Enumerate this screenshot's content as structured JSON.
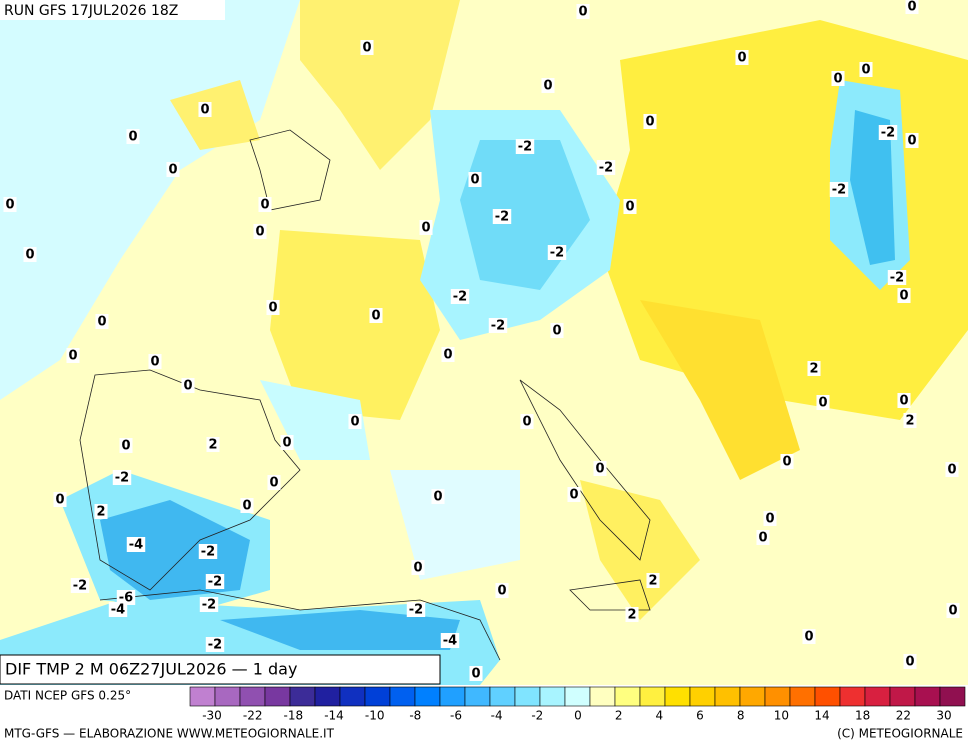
{
  "header": {
    "run": "RUN GFS 17JUL2026 18Z"
  },
  "map": {
    "title": "DIF TMP 2 M 06Z27JUL2026 — 1 day",
    "contour_labels": [
      0,
      0,
      0,
      0,
      0,
      0,
      0,
      0,
      0,
      0,
      0,
      0,
      0,
      0,
      0,
      -2,
      -2,
      0,
      -2,
      0,
      0,
      -2,
      -2,
      0,
      -2,
      -2,
      0,
      -2,
      0,
      0,
      0,
      -2,
      0,
      0,
      0,
      0,
      0,
      2,
      0,
      0,
      2,
      0,
      0,
      0,
      0,
      2,
      -2,
      0,
      0,
      0,
      0,
      0,
      0,
      0,
      2,
      0,
      0,
      0,
      -4,
      -2,
      -2,
      0,
      -2,
      -6,
      -4,
      -2,
      2,
      0,
      -2,
      2,
      0,
      0,
      -2,
      -4,
      0,
      0
    ]
  },
  "legend": {
    "source": "DATI NCEP GFS 0.25°",
    "colors": [
      "#c080d0",
      "#a868c0",
      "#9050b0",
      "#7838a0",
      "#3c2c98",
      "#2020a0",
      "#1030c0",
      "#0040d8",
      "#0060f0",
      "#0080ff",
      "#20a0ff",
      "#40b8ff",
      "#60d0ff",
      "#80e4ff",
      "#a8f4ff",
      "#d0ffff",
      "#ffffc0",
      "#ffff80",
      "#fff040",
      "#ffe000",
      "#ffd000",
      "#ffc000",
      "#ffa800",
      "#ff9000",
      "#ff7000",
      "#ff5000",
      "#ee3030",
      "#d82040",
      "#c01848",
      "#a81050",
      "#901050"
    ],
    "ticks": [
      -30,
      -22,
      -18,
      -14,
      -10,
      -8,
      -6,
      -4,
      -2,
      0,
      2,
      4,
      6,
      8,
      10,
      14,
      18,
      22,
      30
    ]
  },
  "footer": {
    "left": "MTG-GFS — ELABORAZIONE WWW.METEOGIORNALE.IT",
    "right": "(C) METEOGIORNALE"
  }
}
